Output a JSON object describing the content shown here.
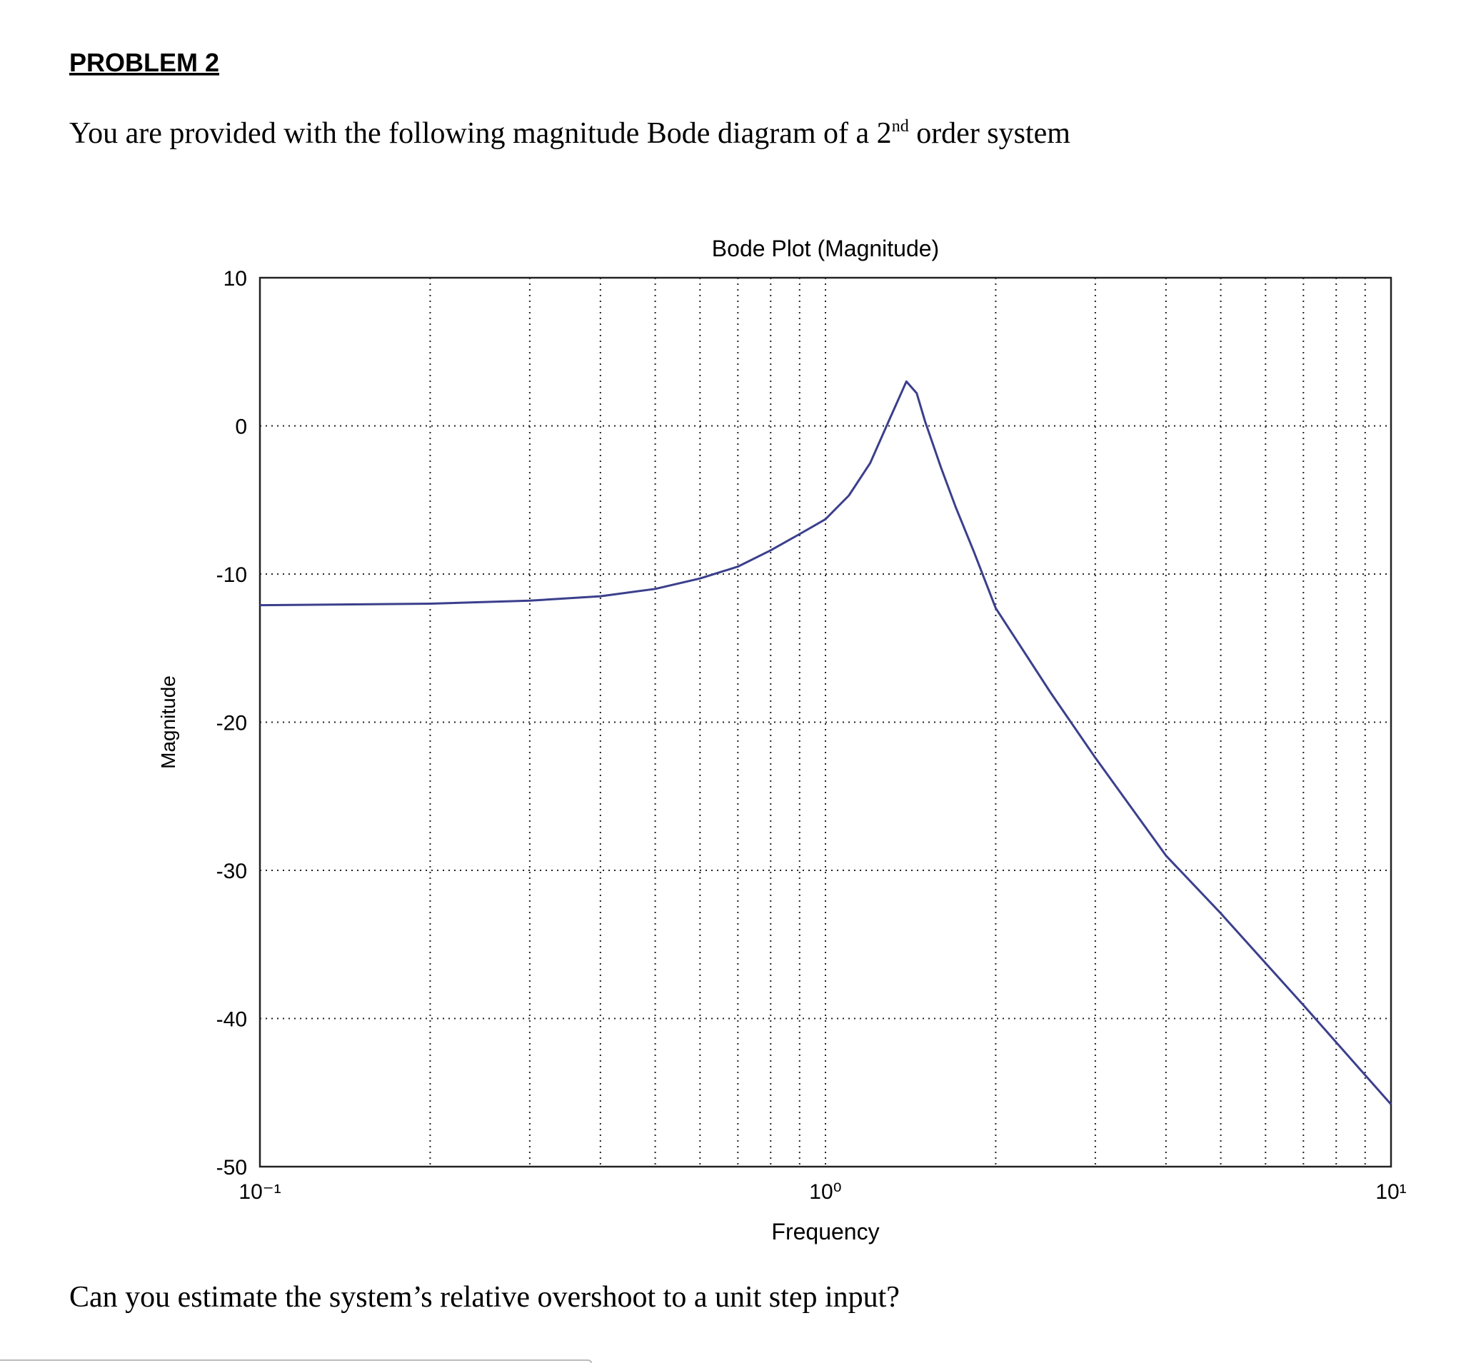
{
  "heading": "PROBLEM 2",
  "intro": [
    "You are provided with the following magnitude Bode diagram of a 2",
    "nd",
    " order system"
  ],
  "question": "Can you estimate the system’s relative overshoot to a unit step input?",
  "chart_data": {
    "type": "line",
    "title": "Bode Plot (Magnitude)",
    "x_label": "Frequency",
    "y_label": "Magnitude",
    "x_scale": "log",
    "grid": true,
    "color": "#3b3f8c",
    "x": [
      0.1,
      0.2,
      0.3,
      0.4,
      0.5,
      0.6,
      0.7,
      0.8,
      0.9,
      1,
      1.1,
      1.2,
      1.3,
      1.39,
      1.45,
      1.5,
      1.6,
      1.7,
      1.83,
      2,
      2.5,
      3,
      4,
      5,
      7,
      10
    ],
    "values": [
      -12.1,
      -12.0,
      -11.8,
      -11.5,
      -11.0,
      -10.3,
      -9.5,
      -8.4,
      -7.3,
      -6.3,
      -4.7,
      -2.5,
      0.5,
      3.0,
      2.2,
      0.3,
      -2.8,
      -5.5,
      -8.5,
      -12.3,
      -18,
      -22.4,
      -29,
      -32.9,
      -39.1,
      -45.8
    ],
    "xlim": [
      0.1,
      10
    ],
    "xticks": [
      {
        "value": 0.1,
        "label": "10⁻¹"
      },
      {
        "value": 1,
        "label": "10⁰"
      },
      {
        "value": 10,
        "label": "10¹"
      }
    ],
    "minor_xgrid": [
      0.2,
      0.3,
      0.4,
      0.5,
      0.6,
      0.7,
      0.8,
      0.9,
      2,
      3,
      4,
      5,
      6,
      7,
      8,
      9
    ],
    "ylim": [
      -50,
      10
    ],
    "yticks": [
      -50,
      -40,
      -30,
      -20,
      -10,
      0,
      10
    ]
  }
}
